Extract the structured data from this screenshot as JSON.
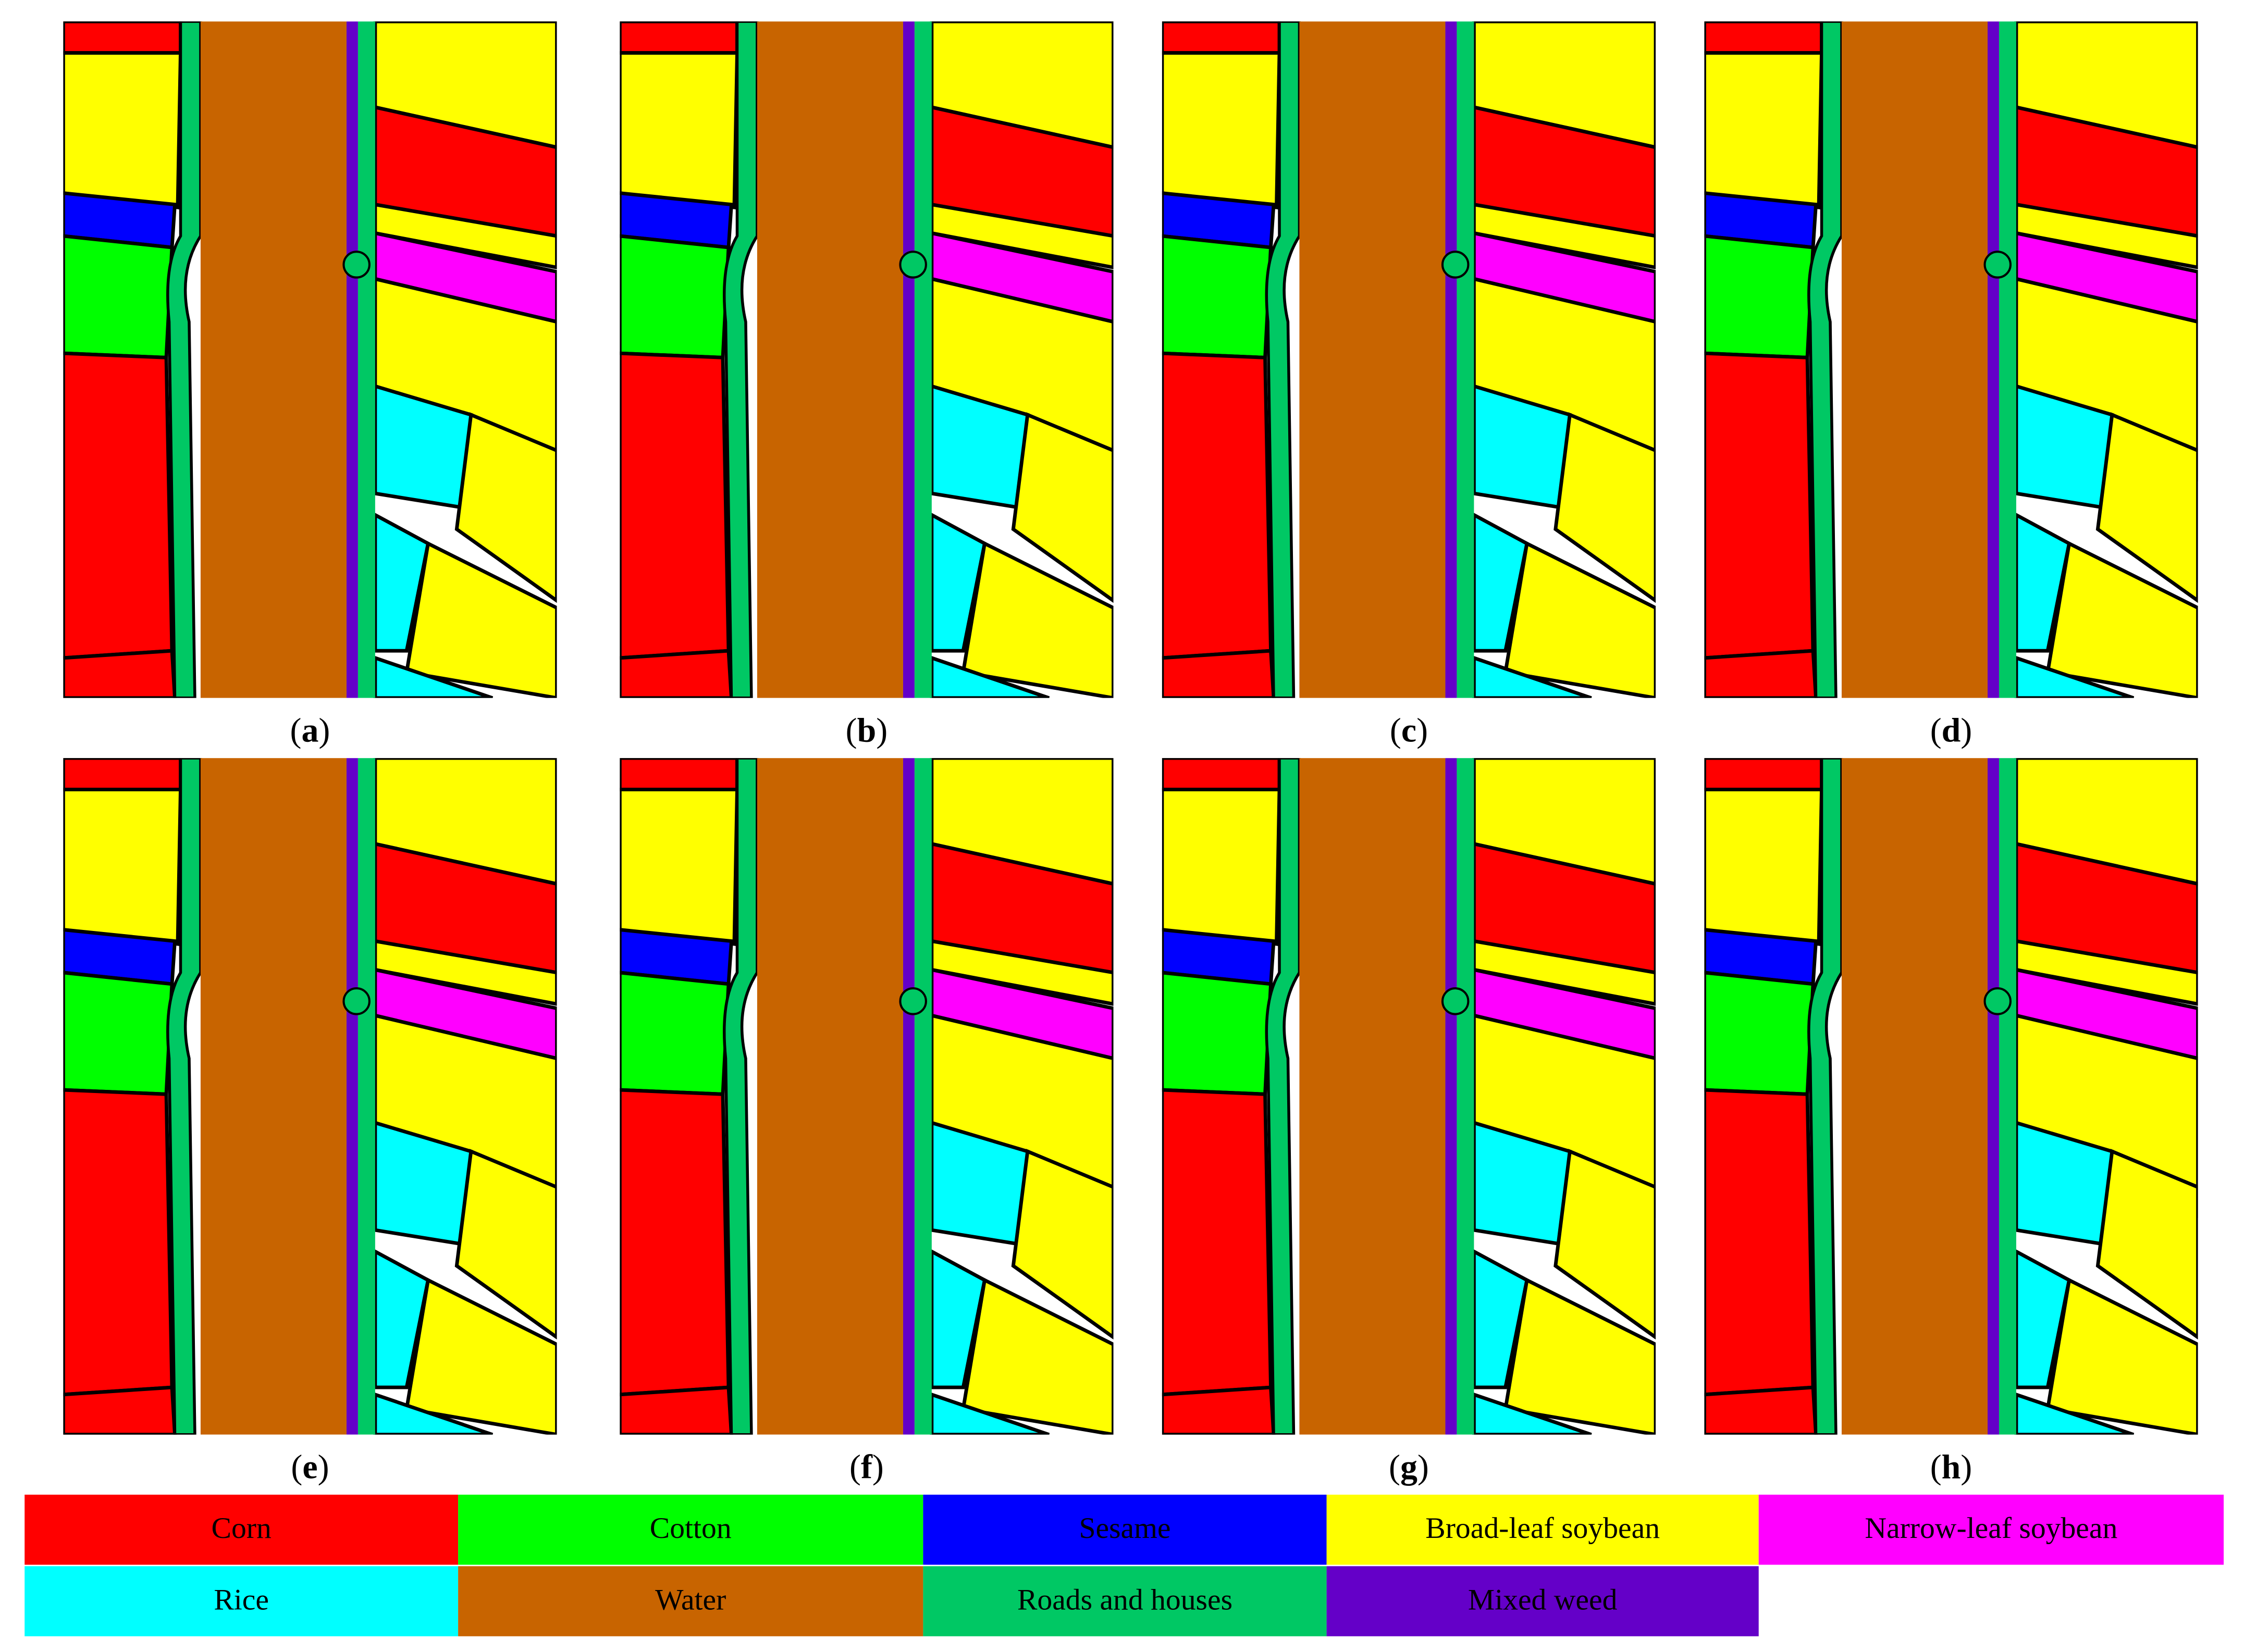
{
  "panels": [
    {
      "label": "(a)"
    },
    {
      "label": "(b)"
    },
    {
      "label": "(c)"
    },
    {
      "label": "(d)"
    },
    {
      "label": "(e)"
    },
    {
      "label": "(f)"
    },
    {
      "label": "(g)"
    },
    {
      "label": "(h)"
    }
  ],
  "legend": [
    {
      "name": "Corn",
      "color": "#ff0000"
    },
    {
      "name": "Cotton",
      "color": "#00ff00"
    },
    {
      "name": "Sesame",
      "color": "#0000ff"
    },
    {
      "name": "Broad-leaf soybean",
      "color": "#ffff00"
    },
    {
      "name": "Narrow-leaf soybean",
      "color": "#ff00ff"
    },
    {
      "name": "Rice",
      "color": "#00ffff"
    },
    {
      "name": "Water",
      "color": "#c86400"
    },
    {
      "name": "Roads and houses",
      "color": "#00c864"
    },
    {
      "name": "Mixed weed",
      "color": "#6400c8"
    }
  ]
}
